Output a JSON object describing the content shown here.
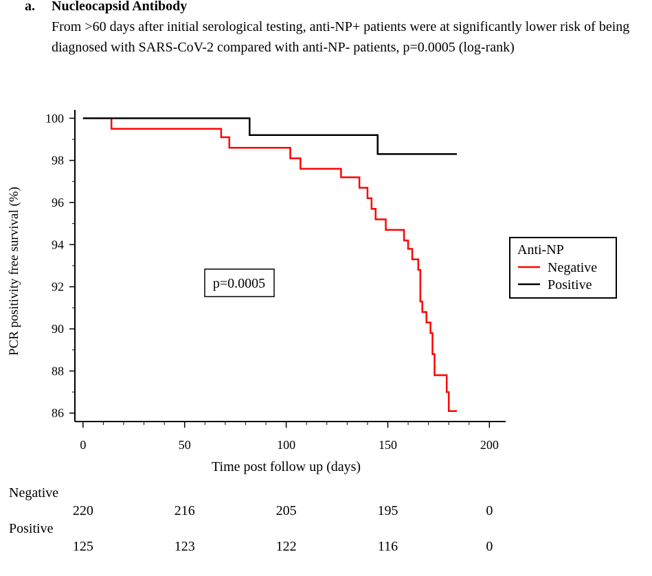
{
  "heading": {
    "label": "a.",
    "title": "Nucleocapsid Antibody",
    "caption": "From >60 days after initial serological testing, anti-NP+ patients were at significantly lower risk of being diagnosed with SARS-CoV-2 compared with anti-NP- patients, p=0.0005 (log-rank)"
  },
  "chart_data": {
    "type": "line",
    "subtype": "kaplan-meier step",
    "xlabel": "Time post follow up (days)",
    "ylabel": "PCR positivity free survival (%)",
    "xlim": [
      -4,
      208
    ],
    "ylim": [
      85.6,
      100.4
    ],
    "xticks": [
      0,
      50,
      100,
      150,
      200
    ],
    "yticks": [
      86,
      88,
      90,
      92,
      94,
      96,
      98,
      100
    ],
    "grid": false,
    "annotation": "p=0.0005",
    "legend": {
      "title": "Anti-NP",
      "position": "right"
    },
    "series": [
      {
        "name": "Negative",
        "color": "#ff0000",
        "points": [
          [
            0,
            100
          ],
          [
            14,
            100
          ],
          [
            14,
            99.5
          ],
          [
            68,
            99.5
          ],
          [
            68,
            99.1
          ],
          [
            72,
            99.1
          ],
          [
            72,
            98.6
          ],
          [
            102,
            98.6
          ],
          [
            102,
            98.1
          ],
          [
            107,
            98.1
          ],
          [
            107,
            97.6
          ],
          [
            127,
            97.6
          ],
          [
            127,
            97.2
          ],
          [
            136,
            97.2
          ],
          [
            136,
            96.7
          ],
          [
            140,
            96.7
          ],
          [
            140,
            96.2
          ],
          [
            142,
            96.2
          ],
          [
            142,
            95.7
          ],
          [
            144,
            95.7
          ],
          [
            144,
            95.2
          ],
          [
            149,
            95.2
          ],
          [
            149,
            94.7
          ],
          [
            158,
            94.7
          ],
          [
            158,
            94.2
          ],
          [
            160,
            94.2
          ],
          [
            160,
            93.8
          ],
          [
            162,
            93.8
          ],
          [
            162,
            93.3
          ],
          [
            165,
            93.3
          ],
          [
            165,
            92.8
          ],
          [
            166,
            92.8
          ],
          [
            166,
            91.3
          ],
          [
            167,
            91.3
          ],
          [
            167,
            90.8
          ],
          [
            169,
            90.8
          ],
          [
            169,
            90.3
          ],
          [
            171,
            90.3
          ],
          [
            171,
            89.8
          ],
          [
            172,
            89.8
          ],
          [
            172,
            88.8
          ],
          [
            173,
            88.8
          ],
          [
            173,
            87.8
          ],
          [
            179,
            87.8
          ],
          [
            179,
            87.0
          ],
          [
            180,
            87.0
          ],
          [
            180,
            86.1
          ],
          [
            184,
            86.1
          ]
        ]
      },
      {
        "name": "Positive",
        "color": "#000000",
        "points": [
          [
            0,
            100
          ],
          [
            82,
            100
          ],
          [
            82,
            99.2
          ],
          [
            145,
            99.2
          ],
          [
            145,
            98.3
          ],
          [
            184,
            98.3
          ]
        ]
      }
    ],
    "risk_table": {
      "timepoints": [
        0,
        50,
        100,
        150,
        200
      ],
      "groups": [
        {
          "name": "Negative",
          "counts": [
            "220",
            "216",
            "205",
            "195",
            "0"
          ]
        },
        {
          "name": "Positive",
          "counts": [
            "125",
            "123",
            "122",
            "116",
            "0"
          ]
        }
      ]
    }
  }
}
